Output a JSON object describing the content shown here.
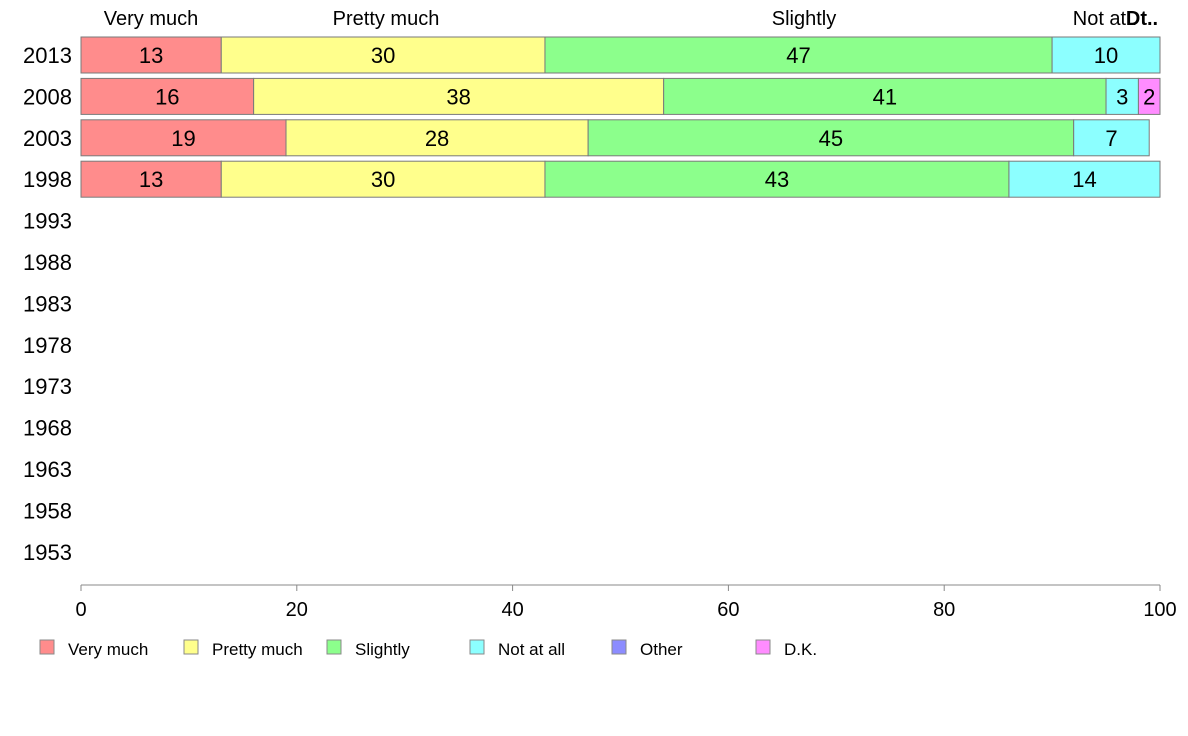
{
  "chart_data": {
    "type": "bar",
    "orientation": "horizontal",
    "stacked": true,
    "categories": [
      "2013",
      "2008",
      "2003",
      "1998",
      "1993",
      "1988",
      "1983",
      "1978",
      "1973",
      "1968",
      "1963",
      "1958",
      "1953"
    ],
    "series": [
      {
        "name": "Very much",
        "color": "#ff8c8c",
        "values": [
          13,
          16,
          19,
          13,
          null,
          null,
          null,
          null,
          null,
          null,
          null,
          null,
          null
        ]
      },
      {
        "name": "Pretty much",
        "color": "#ffff8c",
        "values": [
          30,
          38,
          28,
          30,
          null,
          null,
          null,
          null,
          null,
          null,
          null,
          null,
          null
        ]
      },
      {
        "name": "Slightly",
        "color": "#8cff8c",
        "values": [
          47,
          41,
          45,
          43,
          null,
          null,
          null,
          null,
          null,
          null,
          null,
          null,
          null
        ]
      },
      {
        "name": "Not at all",
        "color": "#8cffff",
        "values": [
          10,
          3,
          7,
          14,
          null,
          null,
          null,
          null,
          null,
          null,
          null,
          null,
          null
        ]
      },
      {
        "name": "Other",
        "color": "#8c8cff",
        "values": [
          0,
          0,
          0,
          0,
          null,
          null,
          null,
          null,
          null,
          null,
          null,
          null,
          null
        ]
      },
      {
        "name": "D.K.",
        "color": "#ff8cff",
        "values": [
          0,
          2,
          0,
          0,
          null,
          null,
          null,
          null,
          null,
          null,
          null,
          null,
          null
        ]
      }
    ],
    "top_labels": [
      "Very much",
      "Pretty much",
      "Slightly",
      "Not at .",
      "Dt.."
    ],
    "xlim": [
      0,
      100
    ],
    "xticks": [
      0,
      20,
      40,
      60,
      80,
      100
    ],
    "legend_position": "bottom"
  }
}
